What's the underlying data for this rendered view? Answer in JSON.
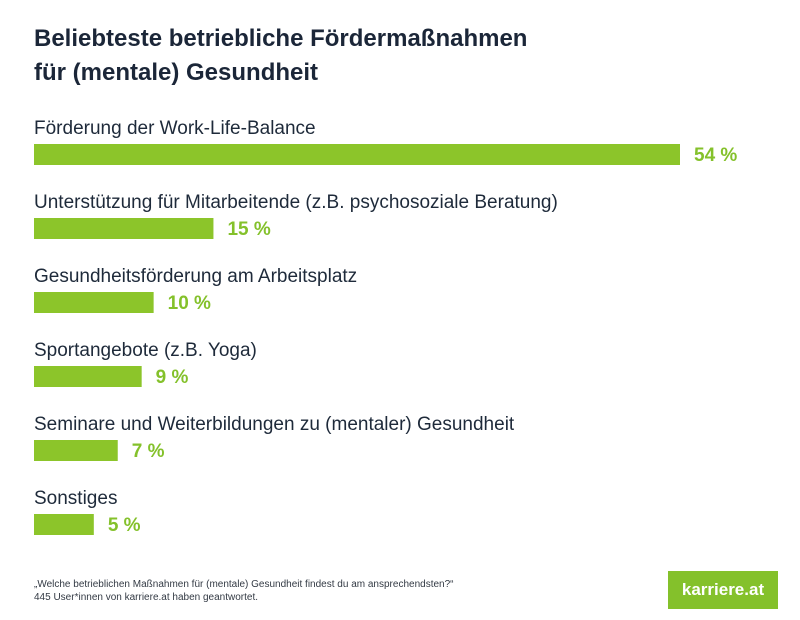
{
  "title": {
    "line1": "Beliebteste betriebliche Fördermaßnahmen",
    "line2": "für (mentale) Gesundheit"
  },
  "chart_data": {
    "type": "bar",
    "orientation": "horizontal",
    "title": "Beliebteste betriebliche Fördermaßnahmen für (mentale) Gesundheit",
    "categories": [
      "Förderung der Work-Life-Balance",
      "Unterstützung für Mitarbeitende (z.B. psychosoziale Beratung)",
      "Gesundheitsförderung am Arbeitsplatz",
      "Sportangebote (z.B. Yoga)",
      "Seminare und Weiterbildungen zu (mentaler) Gesundheit",
      "Sonstiges"
    ],
    "values": [
      54,
      15,
      10,
      9,
      7,
      5
    ],
    "value_labels": [
      "54 %",
      "15 %",
      "10 %",
      "9 %",
      "7 %",
      "5 %"
    ],
    "unit": "%",
    "xlim": [
      0,
      54
    ],
    "bar_color": "#8cc52a",
    "label_color": "#84c12b"
  },
  "footnote": {
    "question": "„Welche betrieblichen Maßnahmen für (mentale) Gesundheit findest du am ansprechendsten?“",
    "respondents": "445 User*innen von karriere.at haben geantwortet."
  },
  "logo": {
    "text": "karriere.at",
    "color": "#84c12b"
  }
}
